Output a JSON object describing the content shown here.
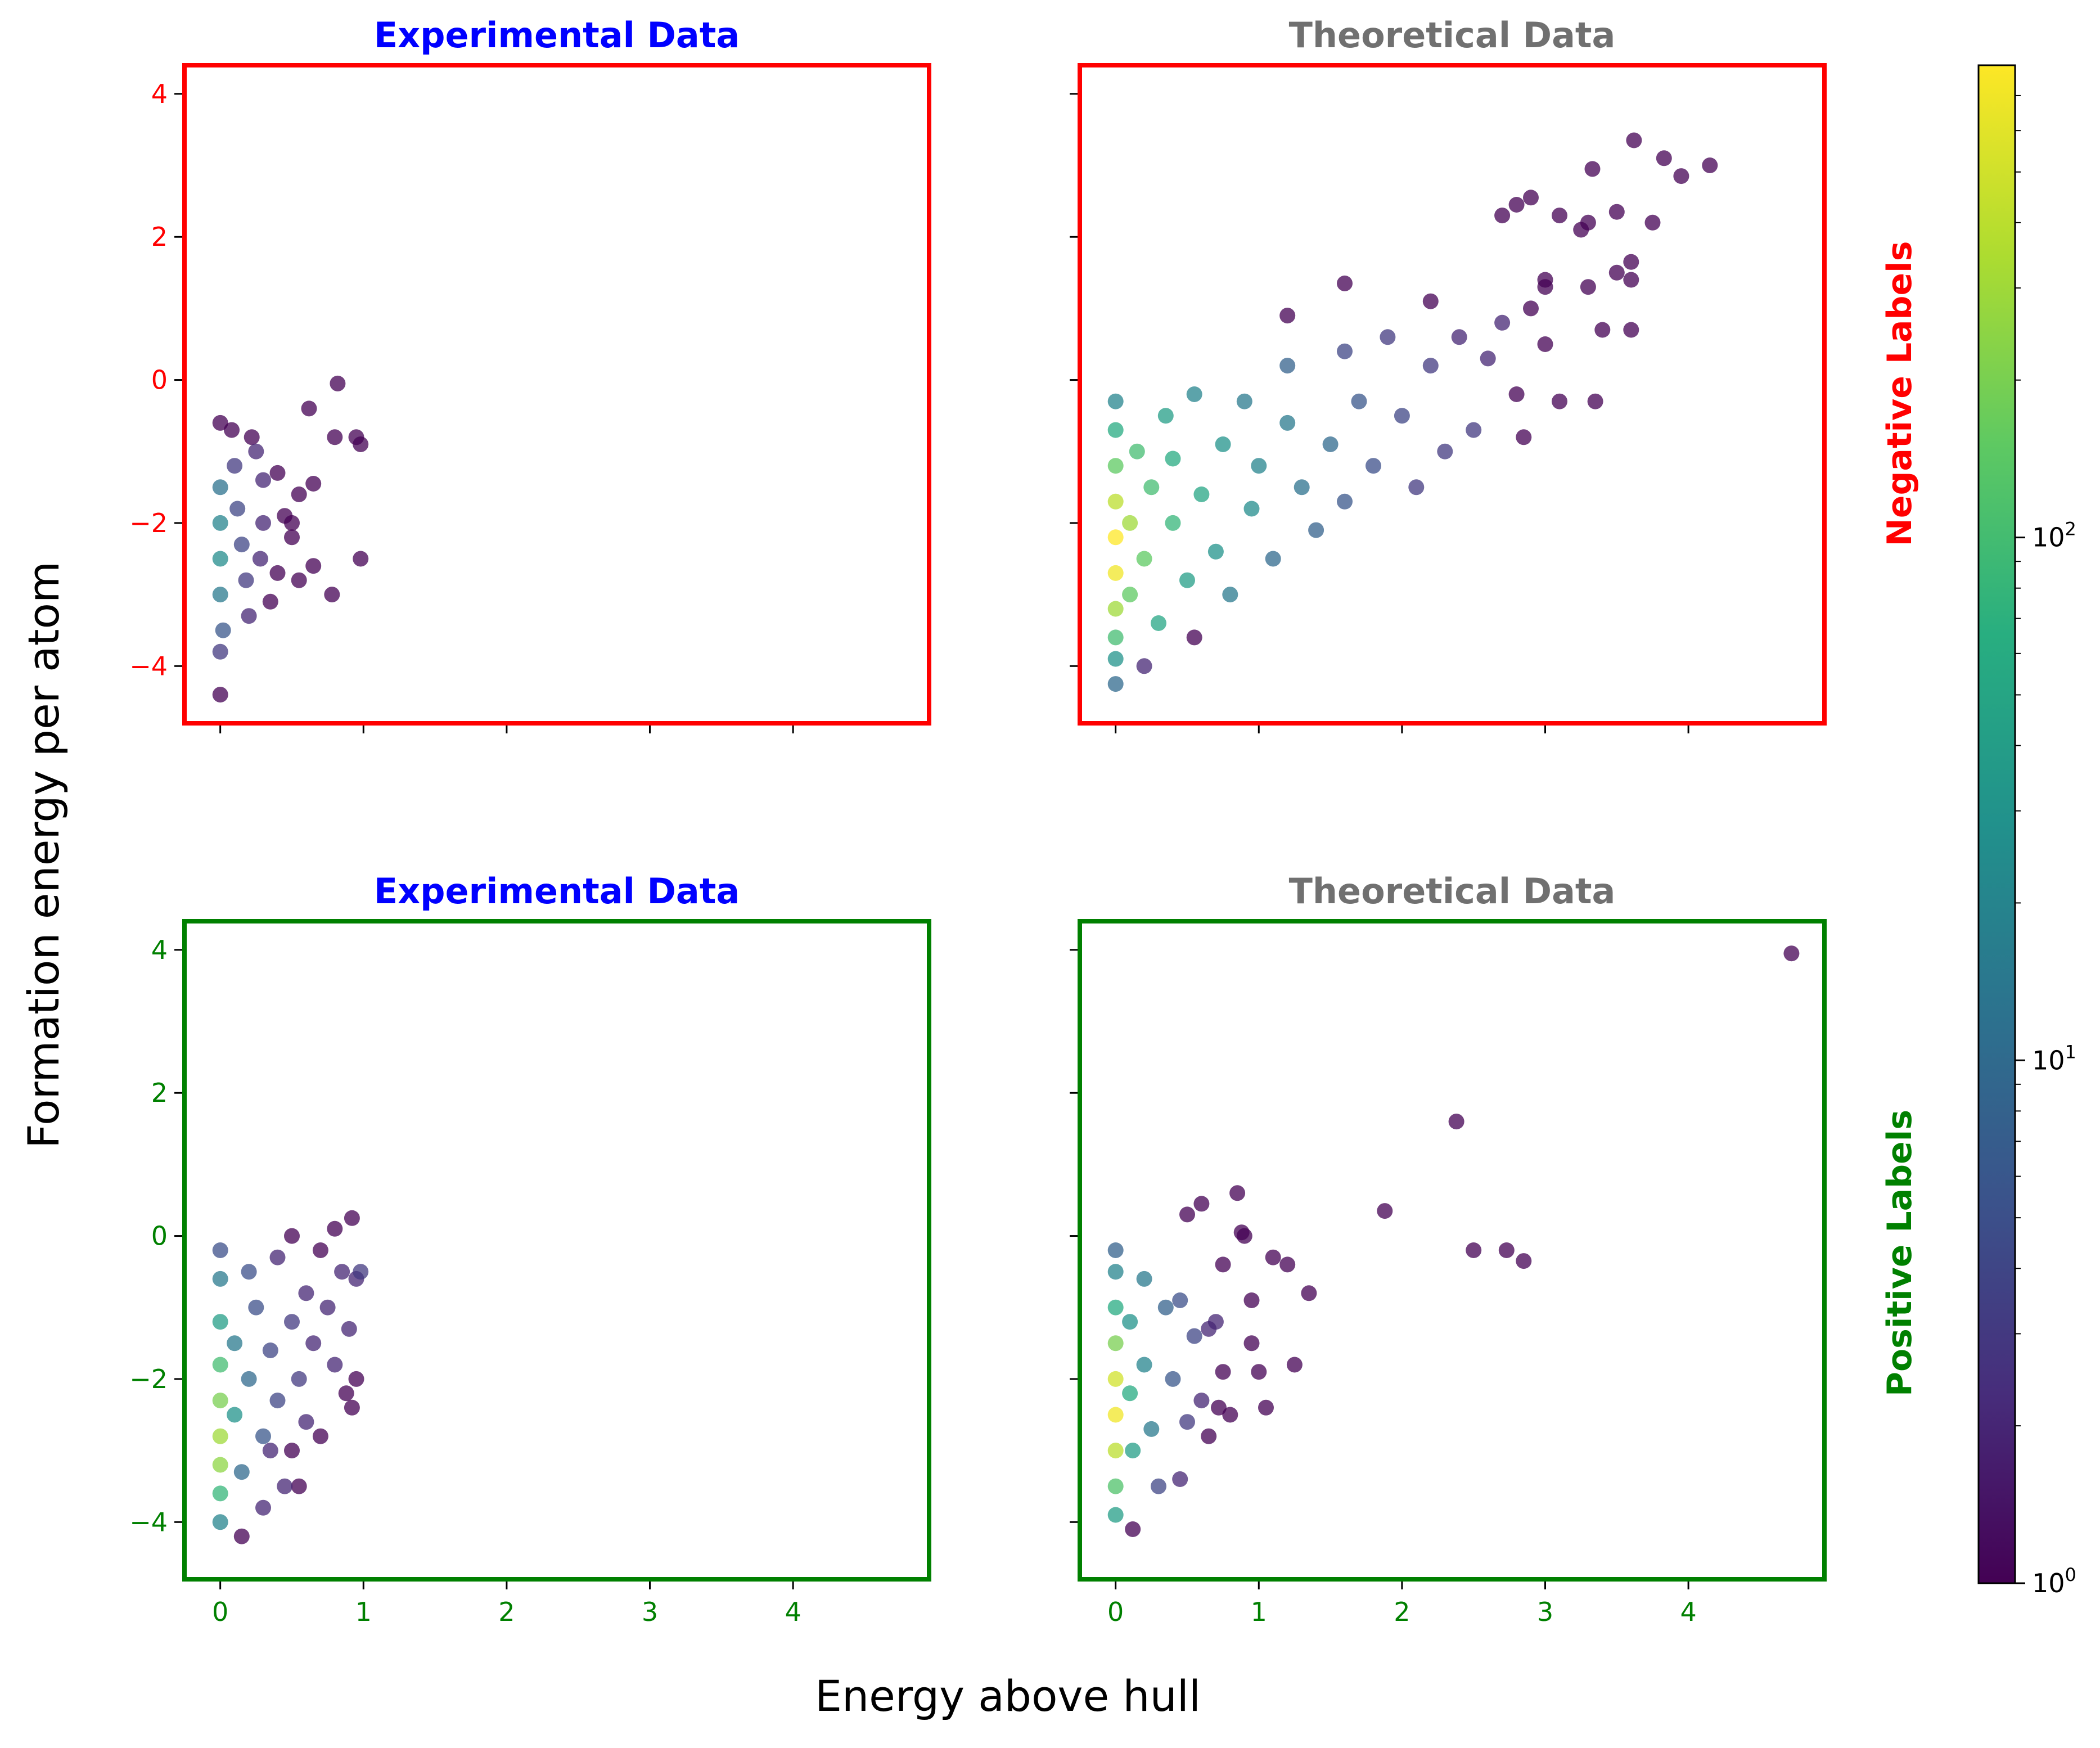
{
  "figure": {
    "xlabel": "Energy above hull",
    "ylabel": "Formation energy per atom",
    "row_labels": [
      {
        "text": "Negative Labels",
        "color": "#ff0000"
      },
      {
        "text": "Positive Labels",
        "color": "#008000"
      }
    ],
    "colorbar": {
      "scale": "log",
      "colormap": "viridis",
      "range": [
        1,
        800
      ],
      "tick_labels": [
        "10^0",
        "10^1",
        "10^2"
      ],
      "tick_values": [
        1,
        10,
        100
      ]
    }
  },
  "chart_data": [
    {
      "type": "scatter",
      "title": "Experimental Data",
      "title_color": "#0000ff",
      "frame_color": "#ff0000",
      "xlim": [
        -0.25,
        4.95
      ],
      "ylim": [
        -4.8,
        4.4
      ],
      "xticks": [
        0,
        1,
        2,
        3,
        4
      ],
      "yticks": [
        -4,
        -2,
        0,
        2,
        4
      ],
      "ytick_labels": [
        "−4",
        "−2",
        "0",
        "2",
        "4"
      ],
      "show_xtick_labels": false,
      "show_ytick_labels": true,
      "color_by": "point density (log scale)",
      "points": [
        {
          "x": 0.0,
          "y": -1.5,
          "d": 12
        },
        {
          "x": 0.0,
          "y": -2.0,
          "d": 20
        },
        {
          "x": 0.0,
          "y": -2.5,
          "d": 25
        },
        {
          "x": 0.0,
          "y": -3.0,
          "d": 15
        },
        {
          "x": 0.02,
          "y": -3.5,
          "d": 6
        },
        {
          "x": 0.0,
          "y": -3.8,
          "d": 3
        },
        {
          "x": 0.0,
          "y": -4.4,
          "d": 1
        },
        {
          "x": 0.0,
          "y": -0.6,
          "d": 1
        },
        {
          "x": 0.08,
          "y": -0.7,
          "d": 1
        },
        {
          "x": 0.1,
          "y": -1.2,
          "d": 3
        },
        {
          "x": 0.12,
          "y": -1.8,
          "d": 4
        },
        {
          "x": 0.15,
          "y": -2.3,
          "d": 4
        },
        {
          "x": 0.18,
          "y": -2.8,
          "d": 3
        },
        {
          "x": 0.2,
          "y": -3.3,
          "d": 2
        },
        {
          "x": 0.25,
          "y": -1.0,
          "d": 2
        },
        {
          "x": 0.22,
          "y": -0.8,
          "d": 1
        },
        {
          "x": 0.3,
          "y": -1.4,
          "d": 2
        },
        {
          "x": 0.3,
          "y": -2.0,
          "d": 2
        },
        {
          "x": 0.28,
          "y": -2.5,
          "d": 2
        },
        {
          "x": 0.35,
          "y": -3.1,
          "d": 1
        },
        {
          "x": 0.4,
          "y": -1.3,
          "d": 1
        },
        {
          "x": 0.4,
          "y": -2.7,
          "d": 1
        },
        {
          "x": 0.45,
          "y": -1.9,
          "d": 1
        },
        {
          "x": 0.5,
          "y": -2.2,
          "d": 1
        },
        {
          "x": 0.55,
          "y": -1.6,
          "d": 1
        },
        {
          "x": 0.55,
          "y": -2.8,
          "d": 1
        },
        {
          "x": 0.62,
          "y": -0.4,
          "d": 1
        },
        {
          "x": 0.65,
          "y": -1.45,
          "d": 1
        },
        {
          "x": 0.65,
          "y": -2.6,
          "d": 1
        },
        {
          "x": 0.8,
          "y": -0.8,
          "d": 1
        },
        {
          "x": 0.82,
          "y": -0.05,
          "d": 1
        },
        {
          "x": 0.78,
          "y": -3.0,
          "d": 1
        },
        {
          "x": 0.95,
          "y": -0.8,
          "d": 1
        },
        {
          "x": 0.98,
          "y": -0.9,
          "d": 1
        },
        {
          "x": 0.98,
          "y": -2.5,
          "d": 1
        },
        {
          "x": 0.5,
          "y": -2.0,
          "d": 1
        }
      ]
    },
    {
      "type": "scatter",
      "title": "Theoretical Data",
      "title_color": "#707070",
      "frame_color": "#ff0000",
      "xlim": [
        -0.25,
        4.95
      ],
      "ylim": [
        -4.8,
        4.4
      ],
      "xticks": [
        0,
        1,
        2,
        3,
        4
      ],
      "yticks": [
        -4,
        -2,
        0,
        2,
        4
      ],
      "ytick_labels": [
        "−4",
        "−2",
        "0",
        "2",
        "4"
      ],
      "show_xtick_labels": false,
      "show_ytick_labels": false,
      "color_by": "point density (log scale)",
      "points": [
        {
          "x": 0.0,
          "y": -2.2,
          "d": 800
        },
        {
          "x": 0.0,
          "y": -2.7,
          "d": 700
        },
        {
          "x": 0.0,
          "y": -1.7,
          "d": 400
        },
        {
          "x": 0.0,
          "y": -3.2,
          "d": 300
        },
        {
          "x": 0.0,
          "y": -1.2,
          "d": 150
        },
        {
          "x": 0.0,
          "y": -3.6,
          "d": 100
        },
        {
          "x": 0.0,
          "y": -0.7,
          "d": 60
        },
        {
          "x": 0.0,
          "y": -0.3,
          "d": 20
        },
        {
          "x": 0.0,
          "y": -3.9,
          "d": 30
        },
        {
          "x": 0.0,
          "y": -4.25,
          "d": 10
        },
        {
          "x": 0.1,
          "y": -2.0,
          "d": 300
        },
        {
          "x": 0.1,
          "y": -3.0,
          "d": 150
        },
        {
          "x": 0.15,
          "y": -1.0,
          "d": 100
        },
        {
          "x": 0.2,
          "y": -2.5,
          "d": 150
        },
        {
          "x": 0.25,
          "y": -1.5,
          "d": 100
        },
        {
          "x": 0.3,
          "y": -3.4,
          "d": 50
        },
        {
          "x": 0.35,
          "y": -0.5,
          "d": 40
        },
        {
          "x": 0.4,
          "y": -2.0,
          "d": 80
        },
        {
          "x": 0.4,
          "y": -1.1,
          "d": 60
        },
        {
          "x": 0.5,
          "y": -2.8,
          "d": 40
        },
        {
          "x": 0.55,
          "y": -0.2,
          "d": 20
        },
        {
          "x": 0.6,
          "y": -1.6,
          "d": 50
        },
        {
          "x": 0.7,
          "y": -2.4,
          "d": 30
        },
        {
          "x": 0.75,
          "y": -0.9,
          "d": 30
        },
        {
          "x": 0.8,
          "y": -3.0,
          "d": 15
        },
        {
          "x": 0.9,
          "y": -0.3,
          "d": 15
        },
        {
          "x": 0.95,
          "y": -1.8,
          "d": 25
        },
        {
          "x": 1.0,
          "y": -1.2,
          "d": 20
        },
        {
          "x": 1.1,
          "y": -2.5,
          "d": 10
        },
        {
          "x": 1.2,
          "y": 0.2,
          "d": 8
        },
        {
          "x": 1.2,
          "y": -0.6,
          "d": 15
        },
        {
          "x": 1.3,
          "y": -1.5,
          "d": 12
        },
        {
          "x": 1.4,
          "y": -2.1,
          "d": 8
        },
        {
          "x": 1.5,
          "y": -0.9,
          "d": 10
        },
        {
          "x": 1.6,
          "y": 0.4,
          "d": 4
        },
        {
          "x": 1.6,
          "y": -1.7,
          "d": 6
        },
        {
          "x": 1.7,
          "y": -0.3,
          "d": 6
        },
        {
          "x": 1.8,
          "y": -1.2,
          "d": 5
        },
        {
          "x": 1.9,
          "y": 0.6,
          "d": 3
        },
        {
          "x": 2.0,
          "y": -0.5,
          "d": 4
        },
        {
          "x": 2.1,
          "y": -1.5,
          "d": 3
        },
        {
          "x": 2.2,
          "y": 0.2,
          "d": 3
        },
        {
          "x": 2.3,
          "y": -1.0,
          "d": 3
        },
        {
          "x": 2.4,
          "y": 0.6,
          "d": 2
        },
        {
          "x": 2.5,
          "y": -0.7,
          "d": 3
        },
        {
          "x": 2.6,
          "y": 0.3,
          "d": 2
        },
        {
          "x": 2.7,
          "y": 0.8,
          "d": 2
        },
        {
          "x": 2.8,
          "y": -0.2,
          "d": 1
        },
        {
          "x": 2.85,
          "y": -0.8,
          "d": 1
        },
        {
          "x": 2.9,
          "y": 1.0,
          "d": 1
        },
        {
          "x": 3.0,
          "y": 0.5,
          "d": 1
        },
        {
          "x": 3.1,
          "y": -0.3,
          "d": 1
        },
        {
          "x": 3.0,
          "y": 1.4,
          "d": 1
        },
        {
          "x": 3.3,
          "y": 1.3,
          "d": 1
        },
        {
          "x": 3.35,
          "y": -0.3,
          "d": 1
        },
        {
          "x": 3.4,
          "y": 0.7,
          "d": 1
        },
        {
          "x": 3.5,
          "y": 1.5,
          "d": 1
        },
        {
          "x": 3.6,
          "y": 1.4,
          "d": 1
        },
        {
          "x": 3.6,
          "y": 0.7,
          "d": 1
        },
        {
          "x": 3.1,
          "y": 2.3,
          "d": 1
        },
        {
          "x": 3.25,
          "y": 2.1,
          "d": 1
        },
        {
          "x": 3.3,
          "y": 2.2,
          "d": 1
        },
        {
          "x": 3.33,
          "y": 2.95,
          "d": 1
        },
        {
          "x": 3.5,
          "y": 2.35,
          "d": 1
        },
        {
          "x": 3.6,
          "y": 1.65,
          "d": 1
        },
        {
          "x": 3.62,
          "y": 3.35,
          "d": 1
        },
        {
          "x": 3.75,
          "y": 2.2,
          "d": 1
        },
        {
          "x": 3.83,
          "y": 3.1,
          "d": 1
        },
        {
          "x": 3.95,
          "y": 2.85,
          "d": 1
        },
        {
          "x": 4.15,
          "y": 3.0,
          "d": 1
        },
        {
          "x": 2.7,
          "y": 2.3,
          "d": 1
        },
        {
          "x": 2.8,
          "y": 2.45,
          "d": 1
        },
        {
          "x": 2.9,
          "y": 2.55,
          "d": 1
        },
        {
          "x": 3.0,
          "y": 1.3,
          "d": 1
        },
        {
          "x": 2.2,
          "y": 1.1,
          "d": 1
        },
        {
          "x": 1.6,
          "y": 1.35,
          "d": 1
        },
        {
          "x": 1.2,
          "y": 0.9,
          "d": 1
        },
        {
          "x": 0.55,
          "y": -3.6,
          "d": 1
        },
        {
          "x": 0.2,
          "y": -4.0,
          "d": 2
        }
      ]
    },
    {
      "type": "scatter",
      "title": "Experimental Data",
      "title_color": "#0000ff",
      "frame_color": "#008000",
      "xlim": [
        -0.25,
        4.95
      ],
      "ylim": [
        -4.8,
        4.4
      ],
      "xticks": [
        0,
        1,
        2,
        3,
        4
      ],
      "xtick_labels": [
        "0",
        "1",
        "2",
        "3",
        "4"
      ],
      "yticks": [
        -4,
        -2,
        0,
        2,
        4
      ],
      "ytick_labels": [
        "−4",
        "−2",
        "0",
        "2",
        "4"
      ],
      "show_xtick_labels": true,
      "show_ytick_labels": true,
      "color_by": "point density (log scale)",
      "points": [
        {
          "x": 0.0,
          "y": -2.8,
          "d": 300
        },
        {
          "x": 0.0,
          "y": -2.3,
          "d": 200
        },
        {
          "x": 0.0,
          "y": -3.2,
          "d": 250
        },
        {
          "x": 0.0,
          "y": -1.8,
          "d": 100
        },
        {
          "x": 0.0,
          "y": -3.6,
          "d": 80
        },
        {
          "x": 0.0,
          "y": -1.2,
          "d": 40
        },
        {
          "x": 0.0,
          "y": -0.6,
          "d": 15
        },
        {
          "x": 0.0,
          "y": -0.2,
          "d": 5
        },
        {
          "x": 0.0,
          "y": -4.0,
          "d": 20
        },
        {
          "x": 0.1,
          "y": -2.5,
          "d": 30
        },
        {
          "x": 0.1,
          "y": -1.5,
          "d": 15
        },
        {
          "x": 0.15,
          "y": -3.3,
          "d": 10
        },
        {
          "x": 0.15,
          "y": -4.2,
          "d": 1
        },
        {
          "x": 0.2,
          "y": -0.5,
          "d": 5
        },
        {
          "x": 0.2,
          "y": -2.0,
          "d": 10
        },
        {
          "x": 0.25,
          "y": -1.0,
          "d": 5
        },
        {
          "x": 0.3,
          "y": -2.8,
          "d": 6
        },
        {
          "x": 0.3,
          "y": -3.8,
          "d": 2
        },
        {
          "x": 0.35,
          "y": -1.6,
          "d": 4
        },
        {
          "x": 0.4,
          "y": -0.3,
          "d": 2
        },
        {
          "x": 0.4,
          "y": -2.3,
          "d": 4
        },
        {
          "x": 0.45,
          "y": -3.5,
          "d": 2
        },
        {
          "x": 0.5,
          "y": -1.2,
          "d": 3
        },
        {
          "x": 0.5,
          "y": -0.0,
          "d": 1
        },
        {
          "x": 0.55,
          "y": -2.0,
          "d": 3
        },
        {
          "x": 0.6,
          "y": -0.8,
          "d": 2
        },
        {
          "x": 0.6,
          "y": -2.6,
          "d": 2
        },
        {
          "x": 0.65,
          "y": -1.5,
          "d": 2
        },
        {
          "x": 0.7,
          "y": -0.2,
          "d": 1
        },
        {
          "x": 0.7,
          "y": -2.8,
          "d": 1
        },
        {
          "x": 0.75,
          "y": -1.0,
          "d": 2
        },
        {
          "x": 0.8,
          "y": 0.1,
          "d": 1
        },
        {
          "x": 0.8,
          "y": -1.8,
          "d": 2
        },
        {
          "x": 0.85,
          "y": -0.5,
          "d": 2
        },
        {
          "x": 0.88,
          "y": -2.2,
          "d": 1
        },
        {
          "x": 0.9,
          "y": -1.3,
          "d": 2
        },
        {
          "x": 0.92,
          "y": 0.25,
          "d": 1
        },
        {
          "x": 0.95,
          "y": -0.6,
          "d": 2
        },
        {
          "x": 0.95,
          "y": -2.0,
          "d": 1
        },
        {
          "x": 0.92,
          "y": -2.4,
          "d": 1
        },
        {
          "x": 0.98,
          "y": -0.5,
          "d": 3
        },
        {
          "x": 0.5,
          "y": -3.0,
          "d": 1
        },
        {
          "x": 0.35,
          "y": -3.0,
          "d": 2
        },
        {
          "x": 0.55,
          "y": -3.5,
          "d": 1
        }
      ]
    },
    {
      "type": "scatter",
      "title": "Theoretical Data",
      "title_color": "#707070",
      "frame_color": "#008000",
      "xlim": [
        -0.25,
        4.95
      ],
      "ylim": [
        -4.8,
        4.4
      ],
      "xticks": [
        0,
        1,
        2,
        3,
        4
      ],
      "xtick_labels": [
        "0",
        "1",
        "2",
        "3",
        "4"
      ],
      "yticks": [
        -4,
        -2,
        0,
        2,
        4
      ],
      "ytick_labels": [
        "−4",
        "−2",
        "0",
        "2",
        "4"
      ],
      "show_xtick_labels": true,
      "show_ytick_labels": false,
      "color_by": "point density (log scale)",
      "points": [
        {
          "x": 0.0,
          "y": -2.5,
          "d": 700
        },
        {
          "x": 0.0,
          "y": -2.0,
          "d": 500
        },
        {
          "x": 0.0,
          "y": -3.0,
          "d": 400
        },
        {
          "x": 0.0,
          "y": -1.5,
          "d": 200
        },
        {
          "x": 0.0,
          "y": -3.5,
          "d": 120
        },
        {
          "x": 0.0,
          "y": -1.0,
          "d": 60
        },
        {
          "x": 0.0,
          "y": -0.5,
          "d": 20
        },
        {
          "x": 0.0,
          "y": -3.9,
          "d": 40
        },
        {
          "x": 0.0,
          "y": -0.2,
          "d": 8
        },
        {
          "x": 0.1,
          "y": -2.2,
          "d": 60
        },
        {
          "x": 0.1,
          "y": -1.2,
          "d": 30
        },
        {
          "x": 0.12,
          "y": -3.0,
          "d": 40
        },
        {
          "x": 0.12,
          "y": -4.1,
          "d": 1
        },
        {
          "x": 0.2,
          "y": -0.6,
          "d": 15
        },
        {
          "x": 0.2,
          "y": -1.8,
          "d": 20
        },
        {
          "x": 0.25,
          "y": -2.7,
          "d": 15
        },
        {
          "x": 0.3,
          "y": -3.5,
          "d": 4
        },
        {
          "x": 0.35,
          "y": -1.0,
          "d": 8
        },
        {
          "x": 0.4,
          "y": -2.0,
          "d": 6
        },
        {
          "x": 0.45,
          "y": -0.9,
          "d": 5
        },
        {
          "x": 0.45,
          "y": -3.4,
          "d": 2
        },
        {
          "x": 0.5,
          "y": 0.3,
          "d": 1
        },
        {
          "x": 0.5,
          "y": -2.6,
          "d": 3
        },
        {
          "x": 0.55,
          "y": -1.4,
          "d": 4
        },
        {
          "x": 0.6,
          "y": 0.45,
          "d": 1
        },
        {
          "x": 0.6,
          "y": -2.3,
          "d": 2
        },
        {
          "x": 0.65,
          "y": -2.8,
          "d": 1
        },
        {
          "x": 0.7,
          "y": -1.2,
          "d": 2
        },
        {
          "x": 0.75,
          "y": -0.4,
          "d": 1
        },
        {
          "x": 0.75,
          "y": -1.9,
          "d": 1
        },
        {
          "x": 0.8,
          "y": -2.5,
          "d": 1
        },
        {
          "x": 0.85,
          "y": 0.6,
          "d": 1
        },
        {
          "x": 0.88,
          "y": 0.05,
          "d": 1
        },
        {
          "x": 0.9,
          "y": 0.0,
          "d": 1
        },
        {
          "x": 0.95,
          "y": -1.5,
          "d": 1
        },
        {
          "x": 0.95,
          "y": -0.9,
          "d": 1
        },
        {
          "x": 1.0,
          "y": -1.9,
          "d": 1
        },
        {
          "x": 1.05,
          "y": -2.4,
          "d": 1
        },
        {
          "x": 1.1,
          "y": -0.3,
          "d": 1
        },
        {
          "x": 1.2,
          "y": -0.4,
          "d": 1
        },
        {
          "x": 1.25,
          "y": -1.8,
          "d": 1
        },
        {
          "x": 1.35,
          "y": -0.8,
          "d": 1
        },
        {
          "x": 1.88,
          "y": 0.35,
          "d": 1
        },
        {
          "x": 2.38,
          "y": 1.6,
          "d": 1
        },
        {
          "x": 2.5,
          "y": -0.2,
          "d": 1
        },
        {
          "x": 2.73,
          "y": -0.2,
          "d": 1
        },
        {
          "x": 2.85,
          "y": -0.35,
          "d": 1
        },
        {
          "x": 4.72,
          "y": 3.95,
          "d": 1
        },
        {
          "x": 0.65,
          "y": -1.3,
          "d": 2
        },
        {
          "x": 0.72,
          "y": -2.4,
          "d": 1
        }
      ]
    }
  ]
}
